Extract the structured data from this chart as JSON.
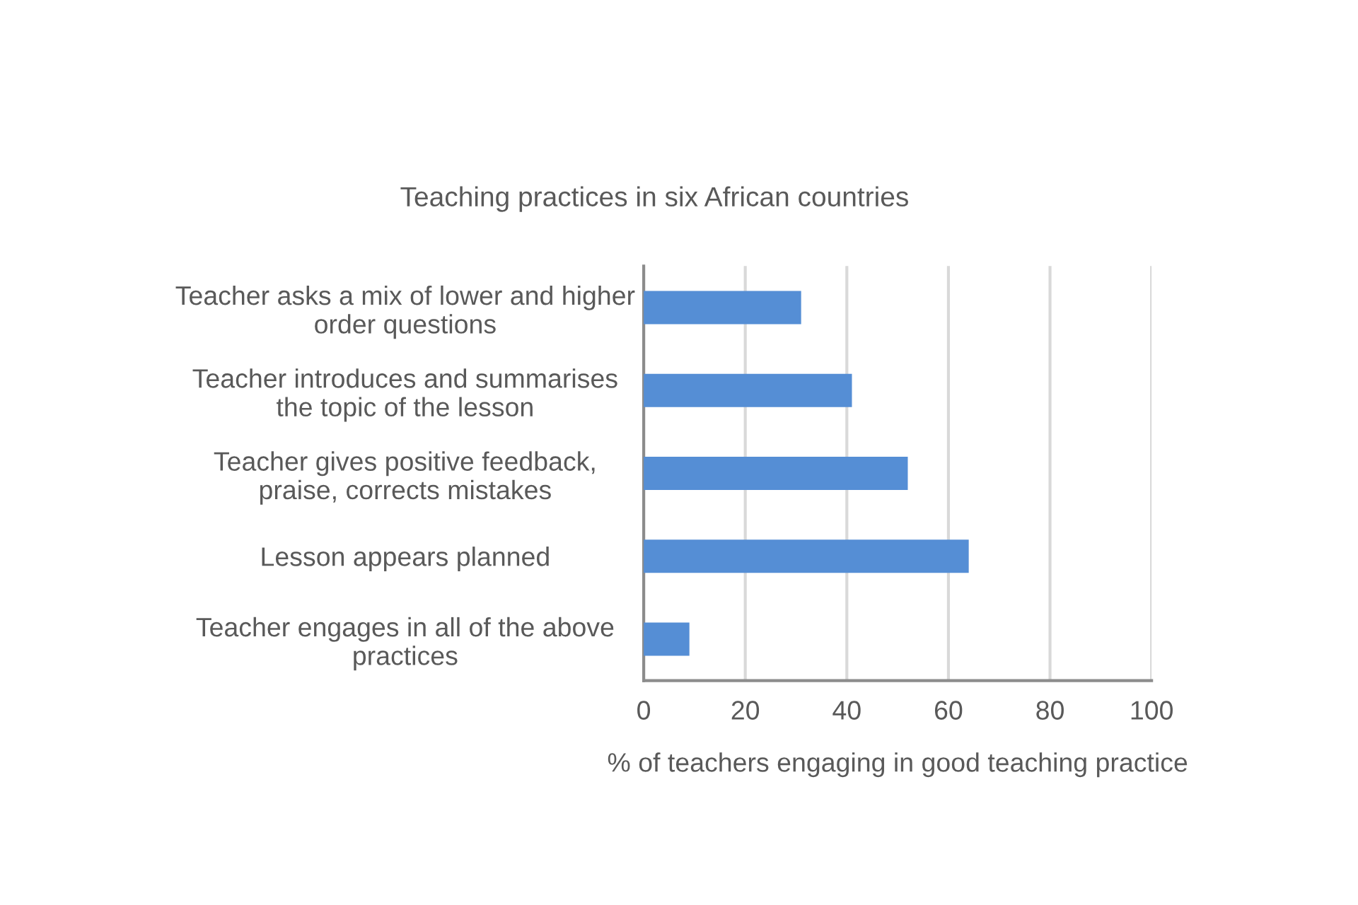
{
  "chart_data": {
    "type": "bar",
    "orientation": "horizontal",
    "title": "Teaching practices in six African countries",
    "xlabel": "% of teachers engaging in good teaching practice",
    "categories": [
      "Teacher asks a mix of lower and higher\norder questions",
      "Teacher introduces and summarises\nthe topic of the lesson",
      "Teacher gives positive feedback,\npraise, corrects mistakes",
      "Lesson appears planned",
      "Teacher engages in all of the above\npractices"
    ],
    "values": [
      31,
      41,
      52,
      64,
      9
    ],
    "color": "#558ed5",
    "xlim": [
      0,
      100
    ],
    "xticks": [
      0,
      20,
      40,
      60,
      80,
      100
    ],
    "grid": "x",
    "legend": false
  }
}
